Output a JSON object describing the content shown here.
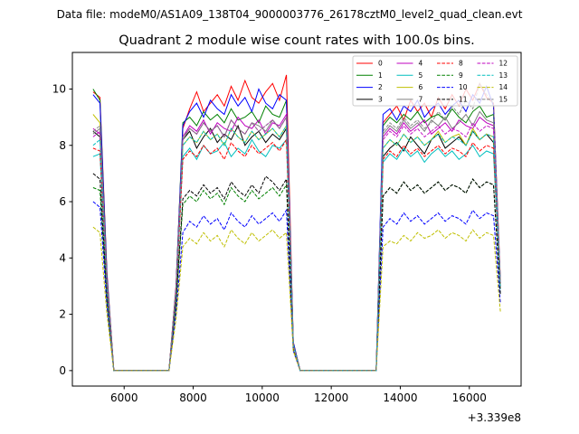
{
  "suptitle": "Data file: modeM0/AS1A09_138T04_9000003776_26178cztM0_level2_quad_clean.evt",
  "chart_data": {
    "type": "line",
    "title": "Quadrant 2 module wise count rates with 100.0s bins.",
    "xlabel": "",
    "ylabel": "",
    "x_offset_text": "+3.339e8",
    "xlim": [
      4500,
      17500
    ],
    "ylim": [
      -0.55,
      11.3
    ],
    "xticks": [
      6000,
      8000,
      10000,
      12000,
      14000,
      16000
    ],
    "yticks": [
      0,
      2,
      4,
      6,
      8,
      10
    ],
    "legend_placement": "top-right",
    "x": [
      5100,
      5300,
      5500,
      5700,
      5900,
      6100,
      6300,
      6500,
      6700,
      6900,
      7100,
      7300,
      7500,
      7700,
      7900,
      8100,
      8300,
      8500,
      8700,
      8900,
      9100,
      9300,
      9500,
      9700,
      9900,
      10100,
      10300,
      10500,
      10700,
      10900,
      11100,
      11300,
      11500,
      11700,
      11900,
      12100,
      12300,
      12500,
      12700,
      12900,
      13100,
      13300,
      13500,
      13700,
      13900,
      14100,
      14300,
      14500,
      14700,
      14900,
      15100,
      15300,
      15500,
      15700,
      15900,
      16100,
      16300,
      16500,
      16700,
      16900
    ],
    "series": [
      {
        "name": "0",
        "color": "#ff0000",
        "dashed": false,
        "values": [
          9.9,
          9.7,
          3.5,
          0,
          0,
          0,
          0,
          0,
          0,
          0,
          0,
          0,
          3.0,
          8.6,
          9.3,
          9.9,
          9.2,
          9.5,
          9.8,
          9.4,
          10.1,
          9.6,
          10.3,
          9.7,
          9.5,
          9.9,
          10.2,
          9.6,
          10.5,
          1.0,
          0,
          0,
          0,
          0,
          0,
          0,
          0,
          0,
          0,
          0,
          0,
          0,
          8.8,
          9.1,
          9.4,
          8.9,
          9.6,
          9.2,
          9.5,
          9.0,
          9.7,
          9.3,
          9.8,
          9.4,
          10.0,
          9.6,
          10.2,
          9.7,
          9.5,
          3.2
        ]
      },
      {
        "name": "1",
        "color": "#008000",
        "dashed": false,
        "values": [
          10.0,
          9.6,
          3.4,
          0,
          0,
          0,
          0,
          0,
          0,
          0,
          0,
          0,
          2.9,
          8.8,
          9.0,
          8.7,
          9.2,
          8.9,
          9.1,
          8.8,
          9.3,
          8.9,
          9.0,
          9.2,
          8.8,
          9.4,
          9.1,
          9.0,
          9.6,
          1.0,
          0,
          0,
          0,
          0,
          0,
          0,
          0,
          0,
          0,
          0,
          0,
          0,
          8.7,
          9.0,
          8.8,
          9.1,
          8.9,
          9.2,
          8.8,
          9.0,
          9.1,
          8.9,
          9.3,
          9.0,
          8.8,
          9.2,
          9.4,
          9.0,
          9.1,
          3.1
        ]
      },
      {
        "name": "2",
        "color": "#0000ff",
        "dashed": false,
        "values": [
          9.8,
          9.5,
          3.4,
          0,
          0,
          0,
          0,
          0,
          0,
          0,
          0,
          0,
          2.9,
          8.7,
          9.2,
          9.5,
          9.0,
          9.6,
          9.3,
          9.1,
          9.8,
          9.4,
          9.7,
          9.2,
          10.0,
          9.5,
          9.3,
          9.8,
          9.6,
          1.0,
          0,
          0,
          0,
          0,
          0,
          0,
          0,
          0,
          0,
          0,
          0,
          0,
          9.1,
          9.3,
          8.9,
          9.4,
          9.2,
          9.6,
          9.0,
          9.3,
          9.5,
          9.1,
          9.4,
          9.6,
          9.2,
          9.8,
          9.5,
          10.1,
          9.4,
          3.1
        ]
      },
      {
        "name": "3",
        "color": "#000000",
        "dashed": false,
        "values": [
          8.5,
          8.3,
          3.0,
          0,
          0,
          0,
          0,
          0,
          0,
          0,
          0,
          0,
          2.7,
          8.2,
          8.5,
          7.9,
          8.3,
          8.6,
          8.1,
          8.4,
          8.2,
          8.7,
          8.0,
          8.3,
          8.5,
          8.1,
          8.4,
          8.2,
          8.6,
          0.9,
          0,
          0,
          0,
          0,
          0,
          0,
          0,
          0,
          0,
          0,
          0,
          0,
          7.6,
          7.9,
          8.1,
          7.8,
          8.3,
          8.0,
          7.7,
          8.2,
          8.4,
          7.9,
          8.1,
          8.3,
          8.0,
          8.5,
          8.2,
          8.4,
          8.1,
          3.0
        ]
      },
      {
        "name": "4",
        "color": "#bf00bf",
        "dashed": false,
        "values": [
          8.6,
          8.4,
          3.0,
          0,
          0,
          0,
          0,
          0,
          0,
          0,
          0,
          0,
          2.8,
          8.3,
          8.7,
          8.5,
          8.9,
          8.4,
          8.8,
          8.6,
          8.5,
          9.0,
          8.7,
          8.6,
          8.9,
          8.4,
          8.8,
          8.7,
          9.1,
          0.9,
          0,
          0,
          0,
          0,
          0,
          0,
          0,
          0,
          0,
          0,
          0,
          0,
          8.3,
          8.6,
          8.4,
          8.8,
          8.5,
          8.7,
          8.9,
          8.4,
          8.6,
          8.8,
          8.5,
          8.9,
          8.7,
          8.6,
          9.0,
          8.8,
          8.7,
          3.0
        ]
      },
      {
        "name": "5",
        "color": "#00bfbf",
        "dashed": false,
        "values": [
          7.6,
          7.7,
          2.8,
          0,
          0,
          0,
          0,
          0,
          0,
          0,
          0,
          0,
          2.6,
          7.6,
          7.9,
          7.5,
          8.0,
          7.7,
          7.8,
          8.1,
          7.6,
          7.9,
          7.7,
          8.2,
          7.8,
          7.6,
          8.0,
          7.9,
          8.2,
          0.9,
          0,
          0,
          0,
          0,
          0,
          0,
          0,
          0,
          0,
          0,
          0,
          0,
          7.4,
          7.7,
          7.5,
          7.9,
          7.6,
          7.8,
          7.4,
          7.7,
          7.9,
          7.6,
          7.8,
          7.5,
          7.7,
          8.0,
          7.6,
          7.8,
          7.7,
          2.9
        ]
      },
      {
        "name": "6",
        "color": "#bfbf00",
        "dashed": false,
        "values": [
          9.1,
          8.8,
          3.2,
          0,
          0,
          0,
          0,
          0,
          0,
          0,
          0,
          0,
          2.8,
          8.0,
          8.3,
          8.1,
          8.5,
          8.2,
          8.4,
          8.0,
          8.6,
          8.3,
          8.1,
          8.5,
          8.2,
          8.4,
          8.6,
          8.3,
          8.7,
          0.9,
          0,
          0,
          0,
          0,
          0,
          0,
          0,
          0,
          0,
          0,
          0,
          0,
          7.9,
          8.2,
          8.0,
          8.4,
          8.1,
          8.3,
          8.0,
          8.2,
          8.5,
          8.1,
          8.3,
          8.4,
          8.0,
          8.6,
          8.2,
          8.4,
          8.3,
          3.0
        ]
      },
      {
        "name": "7",
        "color": "#808080",
        "dashed": false,
        "values": [
          8.4,
          8.6,
          3.1,
          0,
          0,
          0,
          0,
          0,
          0,
          0,
          0,
          0,
          2.8,
          8.2,
          8.6,
          8.4,
          8.8,
          8.5,
          8.7,
          8.3,
          8.9,
          8.6,
          8.4,
          8.8,
          8.7,
          8.5,
          8.9,
          8.6,
          9.0,
          0.9,
          0,
          0,
          0,
          0,
          0,
          0,
          0,
          0,
          0,
          0,
          0,
          0,
          8.4,
          8.7,
          8.5,
          8.9,
          8.6,
          8.8,
          8.5,
          8.9,
          8.7,
          9.0,
          8.6,
          8.8,
          9.1,
          8.7,
          9.2,
          8.9,
          8.8,
          3.1
        ]
      },
      {
        "name": "8",
        "color": "#ff0000",
        "dashed": true,
        "values": [
          7.9,
          7.8,
          2.9,
          0,
          0,
          0,
          0,
          0,
          0,
          0,
          0,
          0,
          2.6,
          7.5,
          7.8,
          7.6,
          8.0,
          7.7,
          7.9,
          7.5,
          8.1,
          7.8,
          7.6,
          8.0,
          7.7,
          7.9,
          8.1,
          7.8,
          8.2,
          0.9,
          0,
          0,
          0,
          0,
          0,
          0,
          0,
          0,
          0,
          0,
          0,
          0,
          7.5,
          7.8,
          7.6,
          8.0,
          7.7,
          7.9,
          7.6,
          7.8,
          8.0,
          7.7,
          7.9,
          7.8,
          7.6,
          8.1,
          7.8,
          8.0,
          7.9,
          2.9
        ]
      },
      {
        "name": "9",
        "color": "#008000",
        "dashed": true,
        "values": [
          6.5,
          6.4,
          2.5,
          0,
          0,
          0,
          0,
          0,
          0,
          0,
          0,
          0,
          2.3,
          5.9,
          6.2,
          6.0,
          6.4,
          6.1,
          6.3,
          5.9,
          6.5,
          6.2,
          6.0,
          6.4,
          6.1,
          6.3,
          6.5,
          6.2,
          6.6,
          0.8,
          0,
          0,
          0,
          0,
          0,
          0,
          0,
          0,
          0,
          0,
          0,
          0,
          6.2,
          6.5,
          6.3,
          6.7,
          6.4,
          6.6,
          6.3,
          6.5,
          6.7,
          6.4,
          6.6,
          6.5,
          6.3,
          6.8,
          6.5,
          6.7,
          6.6,
          2.7
        ]
      },
      {
        "name": "10",
        "color": "#0000ff",
        "dashed": true,
        "values": [
          6.0,
          5.8,
          2.3,
          0,
          0,
          0,
          0,
          0,
          0,
          0,
          0,
          0,
          2.0,
          4.9,
          5.3,
          5.1,
          5.5,
          5.2,
          5.4,
          5.0,
          5.6,
          5.3,
          5.1,
          5.5,
          5.2,
          5.4,
          5.6,
          5.3,
          5.7,
          0.7,
          0,
          0,
          0,
          0,
          0,
          0,
          0,
          0,
          0,
          0,
          0,
          0,
          5.1,
          5.4,
          5.2,
          5.6,
          5.3,
          5.5,
          5.2,
          5.4,
          5.6,
          5.3,
          5.5,
          5.4,
          5.2,
          5.7,
          5.4,
          5.6,
          5.5,
          2.4
        ]
      },
      {
        "name": "11",
        "color": "#000000",
        "dashed": true,
        "values": [
          7.0,
          6.8,
          2.6,
          0,
          0,
          0,
          0,
          0,
          0,
          0,
          0,
          0,
          2.4,
          6.1,
          6.4,
          6.2,
          6.6,
          6.3,
          6.5,
          6.1,
          6.7,
          6.4,
          6.2,
          6.6,
          6.3,
          6.9,
          6.7,
          6.4,
          6.8,
          0.8,
          0,
          0,
          0,
          0,
          0,
          0,
          0,
          0,
          0,
          0,
          0,
          0,
          6.2,
          6.5,
          6.3,
          6.7,
          6.4,
          6.6,
          6.3,
          6.5,
          6.7,
          6.4,
          6.6,
          6.5,
          6.3,
          6.8,
          6.5,
          6.7,
          6.6,
          2.7
        ]
      },
      {
        "name": "12",
        "color": "#bf00bf",
        "dashed": true,
        "values": [
          8.3,
          8.5,
          3.0,
          0,
          0,
          0,
          0,
          0,
          0,
          0,
          0,
          0,
          2.7,
          8.3,
          8.6,
          8.4,
          8.8,
          8.5,
          8.7,
          8.3,
          8.9,
          8.6,
          8.4,
          8.8,
          8.5,
          8.7,
          8.9,
          8.6,
          9.0,
          0.9,
          0,
          0,
          0,
          0,
          0,
          0,
          0,
          0,
          0,
          0,
          0,
          0,
          8.2,
          8.5,
          8.3,
          8.7,
          8.4,
          8.6,
          8.3,
          8.5,
          8.7,
          8.4,
          8.6,
          8.5,
          8.3,
          8.8,
          8.5,
          8.7,
          8.6,
          3.0
        ]
      },
      {
        "name": "13",
        "color": "#00bfbf",
        "dashed": true,
        "values": [
          8.0,
          8.2,
          2.9,
          0,
          0,
          0,
          0,
          0,
          0,
          0,
          0,
          0,
          2.7,
          8.0,
          8.3,
          8.1,
          8.5,
          8.2,
          8.4,
          8.0,
          8.6,
          8.3,
          8.1,
          8.5,
          8.2,
          8.4,
          8.6,
          8.3,
          8.7,
          0.9,
          0,
          0,
          0,
          0,
          0,
          0,
          0,
          0,
          0,
          0,
          0,
          0,
          7.9,
          8.2,
          8.0,
          8.4,
          8.1,
          8.3,
          8.0,
          8.2,
          8.4,
          8.1,
          8.3,
          8.2,
          8.0,
          8.5,
          8.2,
          8.4,
          8.3,
          2.9
        ]
      },
      {
        "name": "14",
        "color": "#bfbf00",
        "dashed": true,
        "values": [
          5.1,
          4.9,
          2.0,
          0,
          0,
          0,
          0,
          0,
          0,
          0,
          0,
          0,
          1.8,
          4.4,
          4.7,
          4.5,
          4.9,
          4.6,
          4.8,
          4.4,
          5.0,
          4.7,
          4.5,
          4.9,
          4.6,
          4.8,
          5.0,
          4.7,
          4.9,
          0.7,
          0,
          0,
          0,
          0,
          0,
          0,
          0,
          0,
          0,
          0,
          0,
          0,
          4.4,
          4.6,
          4.5,
          4.8,
          4.6,
          4.9,
          4.7,
          4.8,
          5.0,
          4.7,
          4.9,
          4.8,
          4.6,
          5.0,
          4.7,
          4.9,
          4.8,
          2.1
        ]
      },
      {
        "name": "15",
        "color": "#808080",
        "dashed": true,
        "values": [
          8.5,
          8.7,
          3.1,
          0,
          0,
          0,
          0,
          0,
          0,
          0,
          0,
          0,
          2.8,
          8.3,
          8.6,
          8.4,
          8.8,
          8.5,
          8.7,
          8.3,
          8.9,
          8.6,
          8.4,
          8.8,
          8.5,
          8.7,
          8.9,
          8.6,
          9.0,
          0.9,
          0,
          0,
          0,
          0,
          0,
          0,
          0,
          0,
          0,
          0,
          0,
          0,
          8.5,
          8.8,
          8.6,
          9.0,
          8.7,
          8.9,
          8.6,
          8.8,
          9.2,
          8.9,
          9.4,
          9.1,
          9.6,
          9.3,
          10.2,
          9.8,
          9.5,
          3.1
        ]
      }
    ]
  }
}
